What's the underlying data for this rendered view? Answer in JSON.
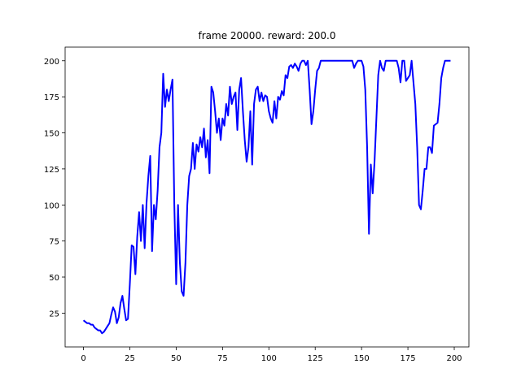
{
  "chart_data": {
    "type": "line",
    "title": "frame 20000. reward: 200.0",
    "x": [
      0,
      1,
      2,
      3,
      4,
      5,
      6,
      7,
      8,
      9,
      10,
      11,
      12,
      13,
      14,
      15,
      16,
      17,
      18,
      19,
      20,
      21,
      22,
      23,
      24,
      25,
      26,
      27,
      28,
      29,
      30,
      31,
      32,
      33,
      34,
      35,
      36,
      37,
      38,
      39,
      40,
      41,
      42,
      43,
      44,
      45,
      46,
      47,
      48,
      49,
      50,
      51,
      52,
      53,
      54,
      55,
      56,
      57,
      58,
      59,
      60,
      61,
      62,
      63,
      64,
      65,
      66,
      67,
      68,
      69,
      70,
      71,
      72,
      73,
      74,
      75,
      76,
      77,
      78,
      79,
      80,
      81,
      82,
      83,
      84,
      85,
      86,
      87,
      88,
      89,
      90,
      91,
      92,
      93,
      94,
      95,
      96,
      97,
      98,
      99,
      100,
      101,
      102,
      103,
      104,
      105,
      106,
      107,
      108,
      109,
      110,
      111,
      112,
      113,
      114,
      115,
      116,
      117,
      118,
      119,
      120,
      121,
      122,
      123,
      124,
      125,
      126,
      127,
      128,
      129,
      130,
      131,
      132,
      133,
      134,
      135,
      136,
      137,
      138,
      139,
      140,
      141,
      142,
      143,
      144,
      145,
      146,
      147,
      148,
      149,
      150,
      151,
      152,
      153,
      154,
      155,
      156,
      157,
      158,
      159,
      160,
      161,
      162,
      163,
      164,
      165,
      166,
      167,
      168,
      169,
      170,
      171,
      172,
      173,
      174,
      175,
      176,
      177,
      178,
      179,
      180,
      181,
      182,
      183,
      184,
      185,
      186,
      187,
      188,
      189,
      190,
      191,
      192,
      193,
      194,
      195,
      196,
      197,
      198
    ],
    "series": [
      {
        "color": "#0000ff",
        "values": [
          20,
          19,
          18,
          18,
          17,
          17,
          15,
          14,
          13,
          13,
          11,
          12,
          14,
          16,
          18,
          24,
          29,
          26,
          18,
          22,
          32,
          37,
          28,
          20,
          21,
          45,
          72,
          71,
          52,
          78,
          95,
          75,
          100,
          70,
          101,
          120,
          134,
          68,
          100,
          90,
          110,
          140,
          150,
          191,
          168,
          180,
          172,
          180,
          187,
          100,
          45,
          100,
          60,
          40,
          37,
          60,
          100,
          120,
          125,
          143,
          125,
          142,
          137,
          147,
          140,
          153,
          133,
          145,
          122,
          182,
          178,
          165,
          150,
          160,
          145,
          160,
          155,
          170,
          162,
          182,
          170,
          175,
          178,
          152,
          180,
          188,
          165,
          145,
          130,
          140,
          165,
          128,
          170,
          180,
          182,
          172,
          178,
          172,
          176,
          175,
          165,
          160,
          157,
          172,
          160,
          175,
          173,
          179,
          176,
          190,
          188,
          196,
          197,
          195,
          198,
          196,
          193,
          198,
          200,
          200,
          197,
          200,
          180,
          156,
          165,
          180,
          193,
          195,
          200,
          200,
          200,
          200,
          200,
          200,
          200,
          200,
          200,
          200,
          200,
          200,
          200,
          200,
          200,
          200,
          200,
          200,
          195,
          198,
          200,
          200,
          200,
          196,
          180,
          140,
          80,
          128,
          108,
          130,
          160,
          190,
          200,
          195,
          193,
          200,
          200,
          200,
          200,
          200,
          200,
          200,
          195,
          185,
          200,
          200,
          186,
          188,
          190,
          200,
          185,
          170,
          140,
          100,
          97,
          110,
          125,
          125,
          140,
          140,
          136,
          155,
          156,
          157,
          170,
          188,
          195,
          200,
          200,
          200,
          200
        ]
      }
    ],
    "xlim": [
      -9.9,
      207.9
    ],
    "ylim": [
      1.55,
      209.45
    ],
    "xticks": [
      0,
      25,
      50,
      75,
      100,
      125,
      150,
      175,
      200
    ],
    "yticks": [
      25,
      50,
      75,
      100,
      125,
      150,
      175,
      200
    ]
  }
}
